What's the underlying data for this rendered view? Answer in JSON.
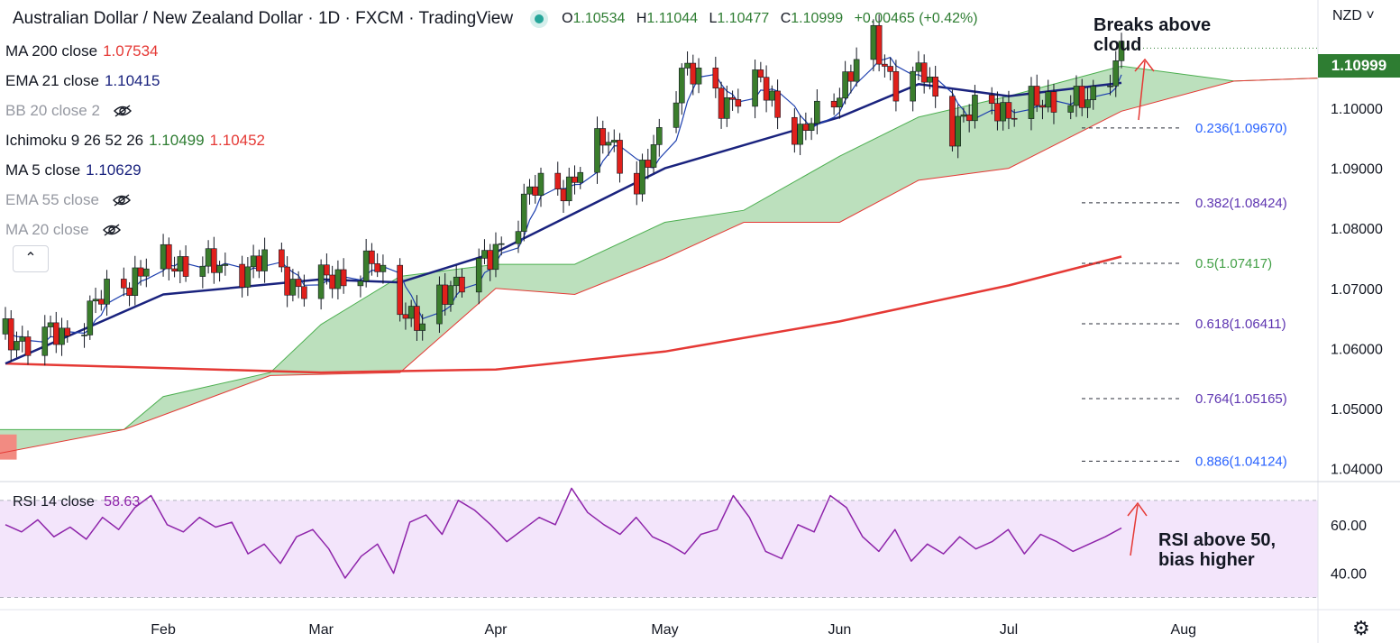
{
  "header": {
    "symbol": "Australian Dollar / New Zealand Dollar · 1D · FXCM · TradingView",
    "open_label": "O",
    "open": "1.10534",
    "high_label": "H",
    "high": "1.11044",
    "low_label": "L",
    "low": "1.10477",
    "close_label": "C",
    "close": "1.10999",
    "change": "+0.00465 (+0.42%)",
    "currency": "NZD"
  },
  "indicators": [
    {
      "label": "MA 200 close",
      "value": "1.07534",
      "color": "#e53935",
      "visible": true
    },
    {
      "label": "EMA 21 close",
      "value": "1.10415",
      "color": "#1a237e",
      "visible": true
    },
    {
      "label": "BB 20 close 2",
      "value": "",
      "visible": false
    },
    {
      "label": "Ichimoku 9 26 52 26",
      "value": "1.10499",
      "value2": "1.10452",
      "color": "#2e7d32",
      "color2": "#e53935",
      "visible": true
    },
    {
      "label": "MA 5 close",
      "value": "1.10629",
      "color": "#1a237e",
      "visible": true
    },
    {
      "label": "EMA 55 close",
      "value": "",
      "visible": false
    },
    {
      "label": "MA 20 close",
      "value": "",
      "visible": false
    }
  ],
  "annotations": {
    "cloud": "Breaks above cloud",
    "cloud_line1": "Breaks above",
    "cloud_line2": "cloud",
    "rsi_line1": "RSI above 50,",
    "rsi_line2": "bias higher"
  },
  "last_price": "1.10999",
  "colors": {
    "up": "#3a7d2c",
    "down": "#e0201b",
    "cloud": "#a5d6a7",
    "ma200": "#e53935",
    "ema21": "#1a237e",
    "rsi": "#8e24aa"
  },
  "chart_data": [
    {
      "type": "candlestick",
      "title": "Australian Dollar / New Zealand Dollar · 1D · FXCM",
      "x_axis_labels": [
        "Feb",
        "Mar",
        "Apr",
        "May",
        "Jun",
        "Jul",
        "Aug"
      ],
      "y_axis_ticks": [
        "1.10000",
        "1.09000",
        "1.08000",
        "1.07000",
        "1.06000",
        "1.05000",
        "1.04000"
      ],
      "ylim": [
        1.038,
        1.118
      ],
      "fibonacci": [
        {
          "label": "0.236(1.09670)",
          "value": 1.0967
        },
        {
          "label": "0.382(1.08424)",
          "value": 1.08424
        },
        {
          "label": "0.5(1.07417)",
          "value": 1.07417
        },
        {
          "label": "0.618(1.06411)",
          "value": 1.06411
        },
        {
          "label": "0.764(1.05165)",
          "value": 1.05165
        },
        {
          "label": "0.886(1.04124)",
          "value": 1.04124
        }
      ],
      "close_path": [
        [
          "2021-01-04",
          1.0624
        ],
        [
          "2021-01-08",
          1.0612
        ],
        [
          "2021-01-15",
          1.0626
        ],
        [
          "2021-01-22",
          1.069
        ],
        [
          "2021-01-29",
          1.0735
        ],
        [
          "2021-02-05",
          1.0745
        ],
        [
          "2021-02-12",
          1.073
        ],
        [
          "2021-02-19",
          1.0742
        ],
        [
          "2021-02-26",
          1.07
        ],
        [
          "2021-03-05",
          1.0722
        ],
        [
          "2021-03-10",
          1.074
        ],
        [
          "2021-03-15",
          1.068
        ],
        [
          "2021-03-19",
          1.063
        ],
        [
          "2021-03-24",
          1.071
        ],
        [
          "2021-03-31",
          1.0745
        ],
        [
          "2021-04-07",
          1.086
        ],
        [
          "2021-04-14",
          1.0875
        ],
        [
          "2021-04-21",
          1.0955
        ],
        [
          "2021-04-26",
          1.0862
        ],
        [
          "2021-04-30",
          1.0955
        ],
        [
          "2021-05-04",
          1.107
        ],
        [
          "2021-05-11",
          1.101
        ],
        [
          "2021-05-18",
          1.104
        ],
        [
          "2021-05-25",
          1.095
        ],
        [
          "2021-06-01",
          1.1035
        ],
        [
          "2021-06-07",
          1.1108
        ],
        [
          "2021-06-11",
          1.104
        ],
        [
          "2021-06-16",
          1.1055
        ],
        [
          "2021-06-21",
          1.097
        ],
        [
          "2021-06-28",
          1.101
        ],
        [
          "2021-07-02",
          1.099
        ],
        [
          "2021-07-09",
          1.102
        ],
        [
          "2021-07-15",
          1.1005
        ],
        [
          "2021-07-21",
          1.11
        ]
      ],
      "ma200": [
        [
          "2021-01-04",
          1.0575
        ],
        [
          "2021-03-01",
          1.056
        ],
        [
          "2021-04-01",
          1.0565
        ],
        [
          "2021-05-01",
          1.0595
        ],
        [
          "2021-06-01",
          1.0645
        ],
        [
          "2021-07-01",
          1.0705
        ],
        [
          "2021-07-21",
          1.0753
        ]
      ],
      "ema21": [
        [
          "2021-01-04",
          1.0575
        ],
        [
          "2021-02-01",
          1.069
        ],
        [
          "2021-03-01",
          1.0715
        ],
        [
          "2021-03-15",
          1.071
        ],
        [
          "2021-04-01",
          1.076
        ],
        [
          "2021-05-01",
          1.09
        ],
        [
          "2021-06-01",
          1.0985
        ],
        [
          "2021-06-15",
          1.104
        ],
        [
          "2021-07-01",
          1.102
        ],
        [
          "2021-07-21",
          1.1042
        ]
      ],
      "cloud_upper": [
        [
          "2020-12-28",
          1.0465
        ],
        [
          "2021-01-25",
          1.0465
        ],
        [
          "2021-02-01",
          1.052
        ],
        [
          "2021-02-20",
          1.056
        ],
        [
          "2021-03-01",
          1.064
        ],
        [
          "2021-03-15",
          1.072
        ],
        [
          "2021-04-01",
          1.074
        ],
        [
          "2021-04-15",
          1.074
        ],
        [
          "2021-05-01",
          1.081
        ],
        [
          "2021-05-15",
          1.083
        ],
        [
          "2021-06-01",
          1.092
        ],
        [
          "2021-06-15",
          1.0985
        ],
        [
          "2021-07-01",
          1.102
        ],
        [
          "2021-07-21",
          1.107
        ],
        [
          "2021-08-10",
          1.1045
        ],
        [
          "2021-08-31",
          1.105
        ]
      ],
      "cloud_lower": [
        [
          "2020-12-28",
          1.0415
        ],
        [
          "2021-01-25",
          1.0465
        ],
        [
          "2021-02-20",
          1.0555
        ],
        [
          "2021-03-15",
          1.056
        ],
        [
          "2021-04-01",
          1.07
        ],
        [
          "2021-04-15",
          1.069
        ],
        [
          "2021-05-01",
          1.075
        ],
        [
          "2021-05-15",
          1.081
        ],
        [
          "2021-06-01",
          1.081
        ],
        [
          "2021-06-15",
          1.088
        ],
        [
          "2021-07-01",
          1.09
        ],
        [
          "2021-07-21",
          1.0995
        ],
        [
          "2021-08-10",
          1.1045
        ],
        [
          "2021-08-31",
          1.105
        ]
      ]
    },
    {
      "type": "line",
      "title": "RSI 14 close",
      "series": [
        {
          "name": "RSI 14 close",
          "last": "58.63"
        }
      ],
      "y_axis_ticks": [
        "60.00",
        "40.00"
      ],
      "ylim": [
        25,
        77
      ],
      "bands": [
        30,
        70
      ],
      "values": [
        60,
        57,
        62,
        55,
        59,
        54,
        63,
        58,
        67,
        72,
        60,
        57,
        63,
        59,
        61,
        48,
        52,
        44,
        55,
        58,
        50,
        38,
        47,
        52,
        40,
        61,
        64,
        56,
        70,
        66,
        60,
        53,
        58,
        63,
        60,
        75,
        65,
        60,
        56,
        63,
        55,
        52,
        48,
        56,
        58,
        72,
        63,
        49,
        46,
        60,
        57,
        72,
        67,
        55,
        49,
        58,
        45,
        52,
        48,
        55,
        50,
        53,
        58,
        48,
        56,
        53,
        49,
        52,
        55,
        58.63
      ]
    }
  ]
}
